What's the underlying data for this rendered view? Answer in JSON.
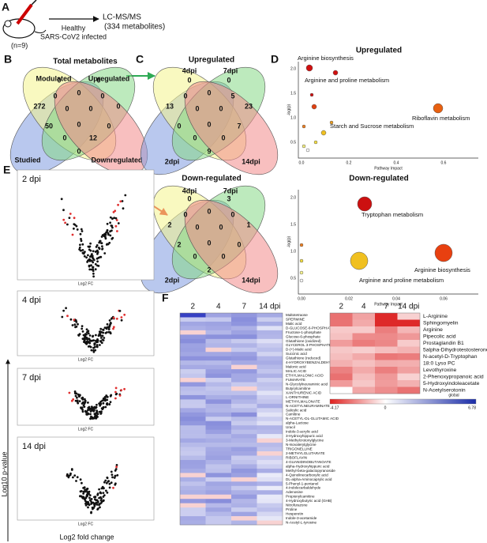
{
  "panel_a": {
    "label": "A",
    "n": "(n=9)",
    "groups": [
      "Healthy",
      "SARS-CoV2 infected"
    ],
    "method": "LC-MS/MS",
    "metabolites": "(334 metabolites)"
  },
  "panel_b": {
    "label": "B",
    "title": "Total metabolites",
    "sets": [
      "Studied",
      "Modulated",
      "Upregulated",
      "Downregulated"
    ],
    "counts": [
      272,
      0,
      0,
      0,
      0,
      0,
      0,
      0,
      0,
      50,
      0,
      0,
      0,
      12,
      0
    ]
  },
  "panel_c": {
    "label": "C",
    "title": "Upregulated",
    "sets": [
      "2dpi",
      "4dpi",
      "7dpi",
      "14dpi"
    ],
    "counts": [
      13,
      0,
      0,
      23,
      0,
      0,
      5,
      0,
      0,
      0,
      7,
      0,
      0,
      0,
      9
    ]
  },
  "panel_c_down": {
    "title": "Down-regulated",
    "sets": [
      "2dpi",
      "4dpi",
      "7dpi",
      "14dpi"
    ],
    "counts": [
      2,
      0,
      3,
      1,
      0,
      0,
      0,
      0,
      0,
      2,
      0,
      0,
      0,
      0,
      2
    ]
  },
  "panel_d": {
    "label": "D",
    "plots": [
      {
        "title": "Upregulated",
        "x_label": "Pathway Impact",
        "y_label": "-log(p)",
        "x_ticks": [
          "0.0",
          "0.2",
          "0.4",
          "0.6"
        ],
        "y_ticks": [
          "0.5",
          "1.0",
          "1.5",
          "2.0"
        ],
        "pathways": [
          "Arginine biosynthesis",
          "Arginine and proline metabolism",
          "Riboflavin metabolism",
          "Starch and Sucrose metabolism"
        ]
      },
      {
        "title": "Down-regulated",
        "x_label": "Pathway Impact",
        "y_label": "-log(p)",
        "x_ticks": [
          "0.00",
          "0.02",
          "0.04",
          "0.06"
        ],
        "y_ticks": [
          "0.5",
          "1.0",
          "1.5",
          "2.0"
        ],
        "pathways": [
          "Tryptophan metabolism",
          "Arginine biosynthesis",
          "Arginine and proline metabolism"
        ]
      }
    ]
  },
  "panel_e": {
    "label": "E",
    "y_label": "Log10 p-value",
    "x_label": "Log2 fold change",
    "plots": [
      {
        "title": "2 dpi",
        "x_label": "Log2 FC"
      },
      {
        "title": "4 dpi",
        "x_label": "Log2 FC"
      },
      {
        "title": "7 dpi",
        "x_label": "Log2 FC"
      },
      {
        "title": "14 dpi",
        "x_label": "Log2 FC"
      }
    ]
  },
  "panel_f": {
    "label": "F",
    "left": {
      "columns": [
        "2",
        "4",
        "7",
        "14 dpi"
      ],
      "rows": [
        "Maltotetraose",
        "SPERMINE",
        "Malic acid",
        "D-GLUCOSE-6-PHOSPHATE",
        "Fructose-1-phosphate",
        "Glucose-6-phosphate",
        "Glutathione (oxidized)",
        "GLYCEROL 3-PHOSPHATE",
        "D-(+)-Malic acid",
        "Succinic acid",
        "Glutathione (reduced)",
        "4-HYDROXYBENZALDEHYDE",
        "Malonic acid",
        "MALIC ACID",
        "ETHYLMALONIC ACID",
        "FUMARATE",
        "N-Glycolylneuraminic acid",
        "Butyrylcarnitine",
        "XANTHURENIC ACID",
        "L-ORNITHINE",
        "METHYLMALONATE",
        "N-ACETYLNEURAMINATE",
        "Salicylic acid",
        "Carnitine",
        "N-ACETYL-DL-GLUTAMIC ACID",
        "alpha-Lactose",
        "Uracil",
        "Indole-3-acrylic acid",
        "3-Hydroxyhippuric acid",
        "3-Methylcrotonylglycine",
        "N-Isovalerylglycine",
        "TRIGONELLINE",
        "2-METHYLGLUTARATE",
        "RIBOFLAVIN",
        "4-GUANIDINOBUTANOATE",
        "alpha-Hydroxyhippuric acid",
        "Methyl-beta-galactopyranoside",
        "4-Quinolinecarboxylic acid",
        "DL-alpha-Aminocaprylic acid",
        "5-Phenyl-1-pentanol",
        "4-Indolecarbaldehyde",
        "Adenosine",
        "Propionylcarnitine",
        "4-Hydroxybutyric acid (GHB)",
        "Nitrofurazone",
        "Proline",
        "Hesperetin",
        "Indole-3-acetamide",
        "N-Acetyl-L-tyrosine"
      ]
    },
    "right": {
      "columns": [
        "2",
        "4",
        "7",
        "14 dpi"
      ],
      "rows": [
        "L-Arginine",
        "Sphingomyelin",
        "Arginine",
        "Pipecolic acid",
        "Prostaglandin B1",
        "5alpha-Dihydrotestosterone",
        "N-acetyl-D-Tryptophan",
        "18:0 Lyso PC",
        "Levothyroxine",
        "2-Phenoxypropanoic acid",
        "5-Hydroxyindoleacetate",
        "N-Acetylserotonin"
      ],
      "scale": {
        "min": "-4.17",
        "mid": "0",
        "max": "6.78",
        "label": "global"
      }
    }
  }
}
